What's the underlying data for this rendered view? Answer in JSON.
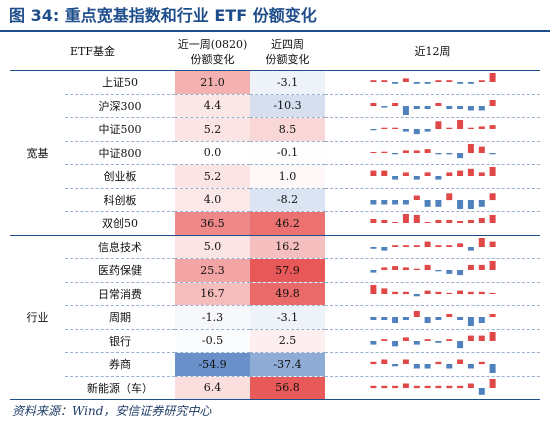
{
  "title": "图 34:  重点宽基指数和行业 ETF 份额变化",
  "source": "资料来源：Wind，安信证券研究中心",
  "colors": {
    "positive": "#e04848",
    "negative": "#4f81bd",
    "title": "#1f4e8c"
  },
  "header": {
    "etf": "ETF基金",
    "col1_line1": "近一周(0820)",
    "col1_line2": "份额变化",
    "col2_line1": "近四周",
    "col2_line2": "份额变化",
    "col3": "近12周"
  },
  "groups": [
    {
      "label": "宽基",
      "rows": [
        {
          "name": "上证50",
          "v1": "21.0",
          "v2": "-3.1",
          "s": [
            1,
            1,
            -1,
            2,
            -1,
            -1,
            1,
            1,
            -1,
            -1,
            1,
            5
          ]
        },
        {
          "name": "沪深300",
          "v1": "4.4",
          "v2": "-10.3",
          "s": [
            2,
            -1,
            2,
            -6,
            -2,
            -2,
            2,
            -2,
            -2,
            -3,
            -3,
            4
          ]
        },
        {
          "name": "中证500",
          "v1": "5.2",
          "v2": "8.5",
          "s": [
            -1,
            1,
            1,
            -2,
            -4,
            -2,
            6,
            1,
            7,
            1,
            2,
            3
          ]
        },
        {
          "name": "中证800",
          "v1": "0.0",
          "v2": "-0.1",
          "s": [
            0,
            1,
            -1,
            2,
            2,
            3,
            -1,
            -1,
            -4,
            7,
            5,
            -1
          ]
        },
        {
          "name": "创业板",
          "v1": "5.2",
          "v2": "1.0",
          "s": [
            3,
            3,
            -2,
            2,
            -2,
            2,
            -2,
            2,
            3,
            4,
            2,
            5
          ]
        },
        {
          "name": "科创板",
          "v1": "4.0",
          "v2": "-8.2",
          "s": [
            -2,
            -2,
            -2,
            -2,
            2,
            -3,
            -3,
            3,
            -4,
            -4,
            -3,
            3
          ]
        },
        {
          "name": "双创50",
          "v1": "36.5",
          "v2": "46.2",
          "s": [
            4,
            3,
            1,
            9,
            8,
            1,
            3,
            3,
            2,
            3,
            5,
            8
          ]
        }
      ]
    },
    {
      "label": "行业",
      "rows": [
        {
          "name": "信息技术",
          "v1": "5.0",
          "v2": "16.2",
          "s": [
            -1,
            -2,
            1,
            1,
            1,
            3,
            1,
            1,
            2,
            -2,
            5,
            3
          ]
        },
        {
          "name": "医药保健",
          "v1": "25.3",
          "v2": "57.9",
          "s": [
            -2,
            2,
            3,
            2,
            1,
            4,
            -1,
            -3,
            -4,
            4,
            4,
            7
          ]
        },
        {
          "name": "日常消费",
          "v1": "16.7",
          "v2": "49.8",
          "s": [
            8,
            5,
            2,
            2,
            -2,
            3,
            2,
            1,
            3,
            2,
            2,
            1
          ]
        },
        {
          "name": "周期",
          "v1": "-1.3",
          "v2": "-3.1",
          "s": [
            -1,
            -1,
            -2,
            -1,
            2,
            -2,
            -1,
            1,
            -1,
            -3,
            -2,
            1
          ]
        },
        {
          "name": "银行",
          "v1": "-0.5",
          "v2": "2.5",
          "s": [
            -2,
            1,
            -3,
            2,
            -2,
            1,
            -1,
            1,
            -4,
            3,
            3,
            5
          ]
        },
        {
          "name": "券商",
          "v1": "-54.9",
          "v2": "-37.4",
          "s": [
            1,
            2,
            -1,
            2,
            -2,
            -2,
            1,
            -2,
            2,
            -2,
            1,
            -4
          ]
        },
        {
          "name": "新能源（车）",
          "v1": "6.4",
          "v2": "56.8",
          "s": [
            1,
            1,
            1,
            2,
            1,
            1,
            1,
            1,
            1,
            2,
            -3,
            4
          ]
        }
      ]
    }
  ]
}
